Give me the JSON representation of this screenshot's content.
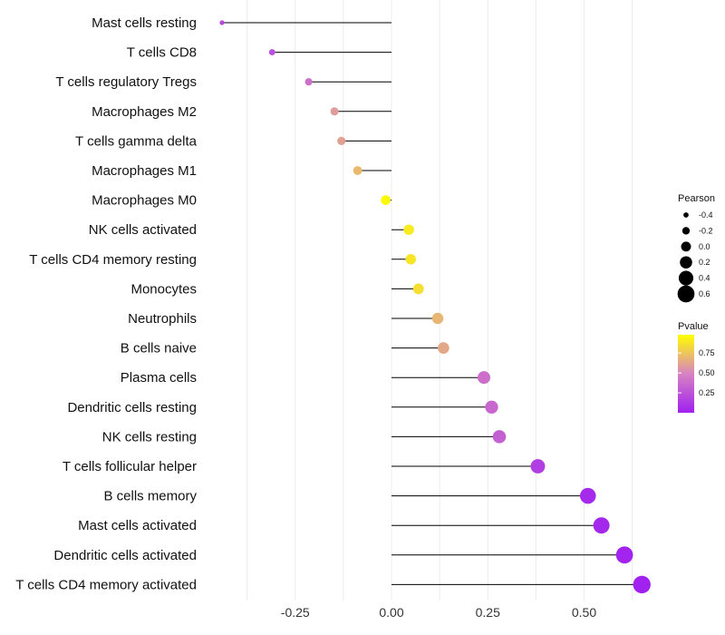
{
  "chart_data": {
    "type": "lollipop",
    "title": "",
    "xlabel": "",
    "ylabel": "",
    "xlim": [
      -0.45,
      0.68
    ],
    "x_ticks": [
      -0.25,
      0.0,
      0.25,
      0.5
    ],
    "x_tick_labels": [
      "-0.25",
      "0.00",
      "0.25",
      "0.50"
    ],
    "grid": true,
    "categories": [
      "Mast cells resting",
      "T cells CD8",
      "T cells regulatory  Tregs",
      "Macrophages M2",
      "T cells gamma delta",
      "Macrophages M1",
      "Macrophages M0",
      "NK cells activated",
      "T cells CD4 memory resting",
      "Monocytes",
      "Neutrophils",
      "B cells naive",
      "Plasma cells",
      "Dendritic cells resting",
      "NK cells resting",
      "T cells follicular helper",
      "B cells memory",
      "Mast cells activated",
      "Dendritic cells activated",
      "T cells CD4 memory activated"
    ],
    "pearson": [
      -0.44,
      -0.31,
      -0.215,
      -0.148,
      -0.13,
      -0.088,
      -0.015,
      0.045,
      0.05,
      0.07,
      0.12,
      0.135,
      0.24,
      0.26,
      0.28,
      0.38,
      0.51,
      0.545,
      0.605,
      0.65
    ],
    "pvalue": [
      0.2,
      0.25,
      0.4,
      0.6,
      0.62,
      0.72,
      0.98,
      0.92,
      0.9,
      0.87,
      0.7,
      0.65,
      0.4,
      0.36,
      0.33,
      0.15,
      0.05,
      0.04,
      0.02,
      0.01
    ],
    "legend": {
      "size_title": "Pearson",
      "size_values": [
        -0.4,
        -0.2,
        0.0,
        0.2,
        0.4,
        0.6
      ],
      "size_labels": [
        "-0.4",
        "-0.2",
        "0.0",
        "0.2",
        "0.4",
        "0.6"
      ],
      "color_title": "Pvalue",
      "color_ticks": [
        0.25,
        0.5,
        0.75
      ],
      "color_tick_labels": [
        "0.25",
        "0.50",
        "0.75"
      ],
      "color_low": "#a020f0",
      "color_mid": "#d783c2",
      "color_high": "#ffff00",
      "position": "right"
    }
  }
}
